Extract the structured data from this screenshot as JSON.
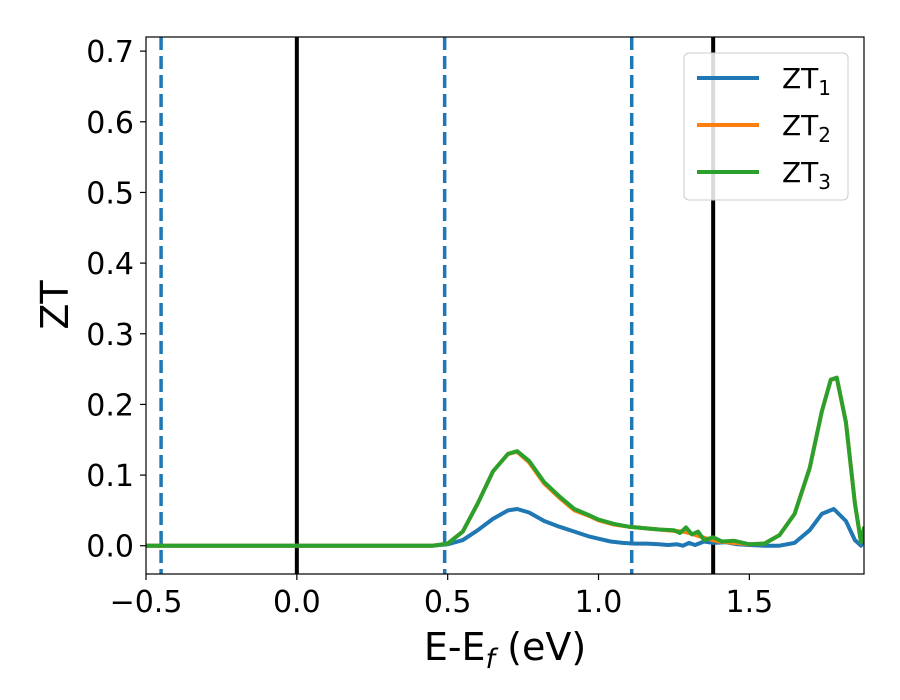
{
  "chart_data": {
    "type": "line",
    "xlabel": "E-E",
    "xlabel_sub": "f",
    "xlabel_unit": " (eV)",
    "ylabel": "ZT",
    "xlim": [
      -0.5,
      1.88
    ],
    "ylim": [
      -0.04,
      0.72
    ],
    "xticks": [
      -0.5,
      0.0,
      0.5,
      1.0,
      1.5
    ],
    "xtick_labels": [
      "−0.5",
      "0.0",
      "0.5",
      "1.0",
      "1.5"
    ],
    "yticks": [
      0.0,
      0.1,
      0.2,
      0.3,
      0.4,
      0.5,
      0.6,
      0.7
    ],
    "ytick_labels": [
      "0.0",
      "0.1",
      "0.2",
      "0.3",
      "0.4",
      "0.5",
      "0.6",
      "0.7"
    ],
    "grid": false,
    "legend_position": "top-right",
    "vlines": [
      {
        "x": -0.45,
        "style": "dashed",
        "color": "#1f77b4"
      },
      {
        "x": 0.0,
        "style": "solid",
        "color": "#000000"
      },
      {
        "x": 0.49,
        "style": "dashed",
        "color": "#1f77b4"
      },
      {
        "x": 1.11,
        "style": "dashed",
        "color": "#1f77b4"
      },
      {
        "x": 1.38,
        "style": "solid",
        "color": "#000000"
      }
    ],
    "series": [
      {
        "name": "ZT",
        "name_sub": "1",
        "color": "#1f77b4",
        "x": [
          -0.5,
          0.0,
          0.3,
          0.45,
          0.5,
          0.55,
          0.6,
          0.65,
          0.7,
          0.73,
          0.77,
          0.82,
          0.87,
          0.92,
          0.97,
          1.0,
          1.04,
          1.08,
          1.12,
          1.16,
          1.2,
          1.23,
          1.26,
          1.28,
          1.3,
          1.32,
          1.35,
          1.38,
          1.42,
          1.46,
          1.5,
          1.55,
          1.6,
          1.65,
          1.7,
          1.74,
          1.78,
          1.82,
          1.85,
          1.87,
          1.88
        ],
        "y": [
          0.0,
          0.0,
          0.0,
          0.0,
          0.002,
          0.008,
          0.022,
          0.038,
          0.05,
          0.052,
          0.047,
          0.035,
          0.027,
          0.02,
          0.013,
          0.01,
          0.006,
          0.004,
          0.003,
          0.003,
          0.002,
          0.001,
          0.002,
          0.0,
          0.004,
          0.001,
          0.006,
          0.004,
          0.005,
          0.002,
          0.001,
          0.0,
          0.0,
          0.004,
          0.022,
          0.045,
          0.052,
          0.035,
          0.008,
          0.0,
          0.01
        ]
      },
      {
        "name": "ZT",
        "name_sub": "2",
        "color": "#ff7f0e",
        "x": [
          -0.5,
          0.0,
          0.3,
          0.45,
          0.5,
          0.55,
          0.6,
          0.65,
          0.7,
          0.73,
          0.77,
          0.82,
          0.87,
          0.92,
          0.97,
          1.0,
          1.05,
          1.1,
          1.15,
          1.2,
          1.25,
          1.28,
          1.3,
          1.33,
          1.36,
          1.4,
          1.45,
          1.5,
          1.55,
          1.6,
          1.65,
          1.7,
          1.74,
          1.77,
          1.79,
          1.82,
          1.85,
          1.87,
          1.88
        ],
        "y": [
          0.0,
          0.0,
          0.0,
          0.0,
          0.003,
          0.02,
          0.06,
          0.105,
          0.13,
          0.133,
          0.118,
          0.088,
          0.068,
          0.05,
          0.042,
          0.036,
          0.03,
          0.027,
          0.025,
          0.023,
          0.021,
          0.02,
          0.018,
          0.014,
          0.01,
          0.006,
          0.004,
          0.002,
          0.003,
          0.015,
          0.045,
          0.11,
          0.19,
          0.235,
          0.237,
          0.175,
          0.06,
          0.005,
          0.025
        ]
      },
      {
        "name": "ZT",
        "name_sub": "3",
        "color": "#2ca02c",
        "x": [
          -0.5,
          0.0,
          0.3,
          0.45,
          0.5,
          0.55,
          0.6,
          0.65,
          0.7,
          0.73,
          0.77,
          0.82,
          0.87,
          0.92,
          0.97,
          1.0,
          1.05,
          1.1,
          1.15,
          1.2,
          1.25,
          1.27,
          1.29,
          1.31,
          1.33,
          1.35,
          1.38,
          1.41,
          1.45,
          1.5,
          1.55,
          1.6,
          1.65,
          1.7,
          1.74,
          1.77,
          1.79,
          1.82,
          1.85,
          1.87,
          1.88
        ],
        "y": [
          0.0,
          0.0,
          0.0,
          0.0,
          0.003,
          0.02,
          0.06,
          0.105,
          0.13,
          0.134,
          0.12,
          0.09,
          0.07,
          0.052,
          0.043,
          0.037,
          0.031,
          0.027,
          0.025,
          0.023,
          0.022,
          0.018,
          0.026,
          0.016,
          0.02,
          0.008,
          0.012,
          0.006,
          0.007,
          0.002,
          0.003,
          0.015,
          0.045,
          0.11,
          0.19,
          0.235,
          0.238,
          0.175,
          0.06,
          0.005,
          0.025
        ]
      }
    ]
  }
}
